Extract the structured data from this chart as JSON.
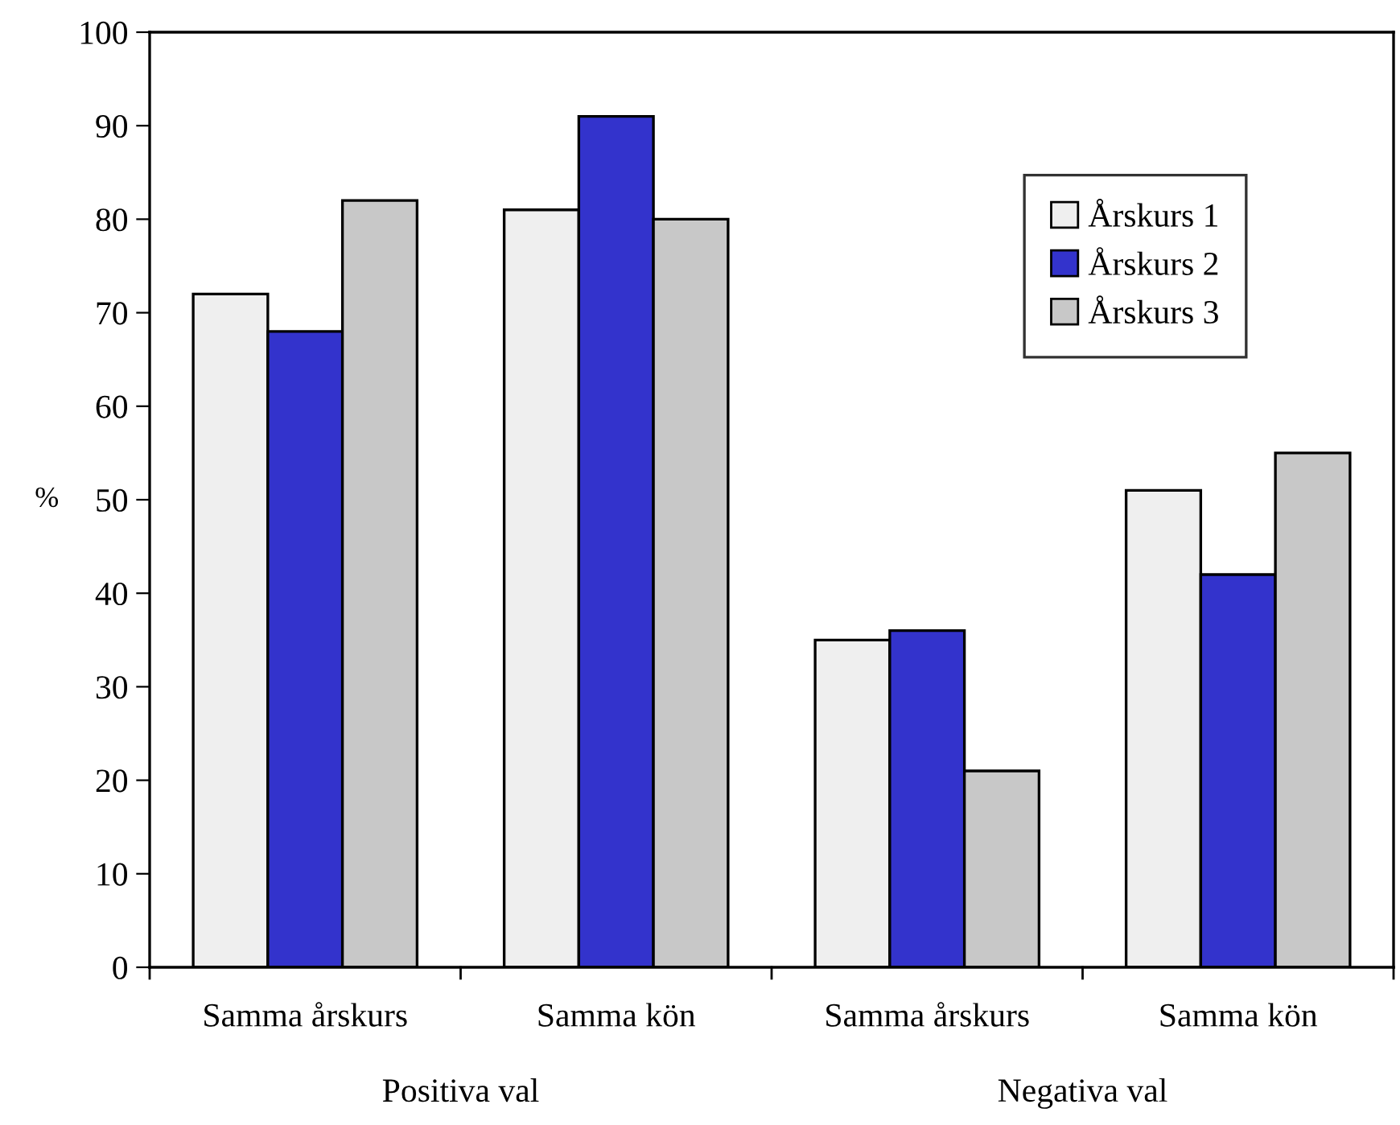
{
  "chart_data": {
    "type": "bar",
    "ylabel": "%",
    "categories": [
      "Samma årskurs",
      "Samma kön",
      "Samma årskurs",
      "Samma kön"
    ],
    "series": [
      {
        "name": "Årskurs 1",
        "color": "#efefef",
        "values": [
          72,
          81,
          35,
          51
        ]
      },
      {
        "name": "Årskurs 2",
        "color": "#3333cc",
        "values": [
          68,
          91,
          36,
          42
        ]
      },
      {
        "name": "Årskurs 3",
        "color": "#c8c8c8",
        "values": [
          82,
          80,
          21,
          55
        ]
      }
    ],
    "ylim": [
      0,
      100
    ],
    "yticks": [
      0,
      10,
      20,
      30,
      40,
      50,
      60,
      70,
      80,
      90,
      100
    ],
    "grid": false,
    "legend": "top right",
    "annotations": [
      "Positiva val",
      "Negativa val"
    ]
  }
}
